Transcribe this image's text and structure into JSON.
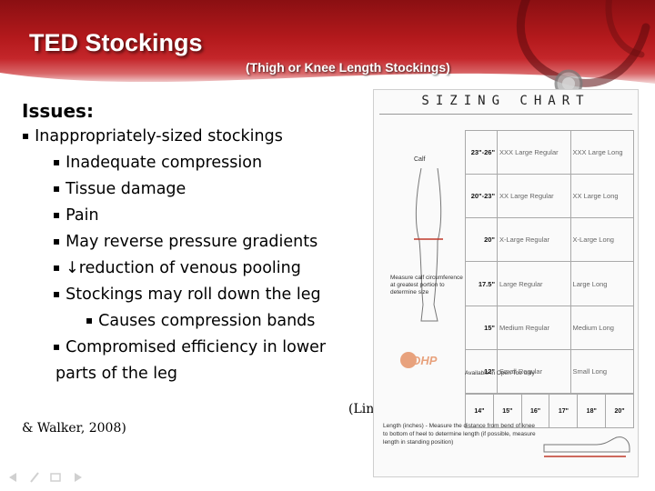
{
  "slide": {
    "title": "TED Stockings",
    "subtitle": "(Thigh or Knee Length Stockings)",
    "issues_heading": "Issues:",
    "bullets": [
      {
        "text": "Inappropriately-sized stockings",
        "level": 1
      },
      {
        "text": "Inadequate compression",
        "level": 2
      },
      {
        "text": "Tissue damage",
        "level": 2
      },
      {
        "text": "Pain",
        "level": 2
      },
      {
        "text": "May reverse pressure gradients",
        "level": 2
      },
      {
        "text": "↓reduction of venous pooling",
        "level": 2
      },
      {
        "text": "Stockings may roll down the leg",
        "level": 2
      },
      {
        "text": "Causes compression bands",
        "level": 3
      },
      {
        "text": "Compromised efficiency in lower",
        "level": 2
      }
    ],
    "bullet_continuation": "parts of the leg",
    "citation_line1": "(Lin",
    "citation_line2": "& Walker, 2008)"
  },
  "sizing_chart": {
    "heading": "SIZING CHART",
    "calf_label": "Calf",
    "rows": [
      {
        "measure": "23\"-26\"",
        "size_a": "XXX Large Regular",
        "size_b": "XXX Large Long"
      },
      {
        "measure": "20\"-23\"",
        "size_a": "XX Large Regular",
        "size_b": "XX Large Long"
      },
      {
        "measure": "20\"",
        "size_a": "X-Large Regular",
        "size_b": "X-Large Long"
      },
      {
        "measure": "17.5\"",
        "size_a": "Large Regular",
        "size_b": "Large Long"
      },
      {
        "measure": "15\"",
        "size_a": "Medium Regular",
        "size_b": "Medium Long"
      },
      {
        "measure": "12\"",
        "size_a": "Small Regular",
        "size_b": "Small Long"
      }
    ],
    "lengths": [
      "14\"",
      "15\"",
      "16\"",
      "17\"",
      "18\"",
      "20\""
    ],
    "measure_instruction": "Measure calf circumference at greatest portion to determine size",
    "logo_text": "DHP",
    "availability": "Available in Open Toe only",
    "length_instruction": "Length (inches) - Measure the distance from bend of knee to bottom of heel to determine length (if possible, measure length in standing position)"
  },
  "colors": {
    "header_red": "#b3191c",
    "title_text": "#ffffff",
    "body_text": "#000000"
  }
}
